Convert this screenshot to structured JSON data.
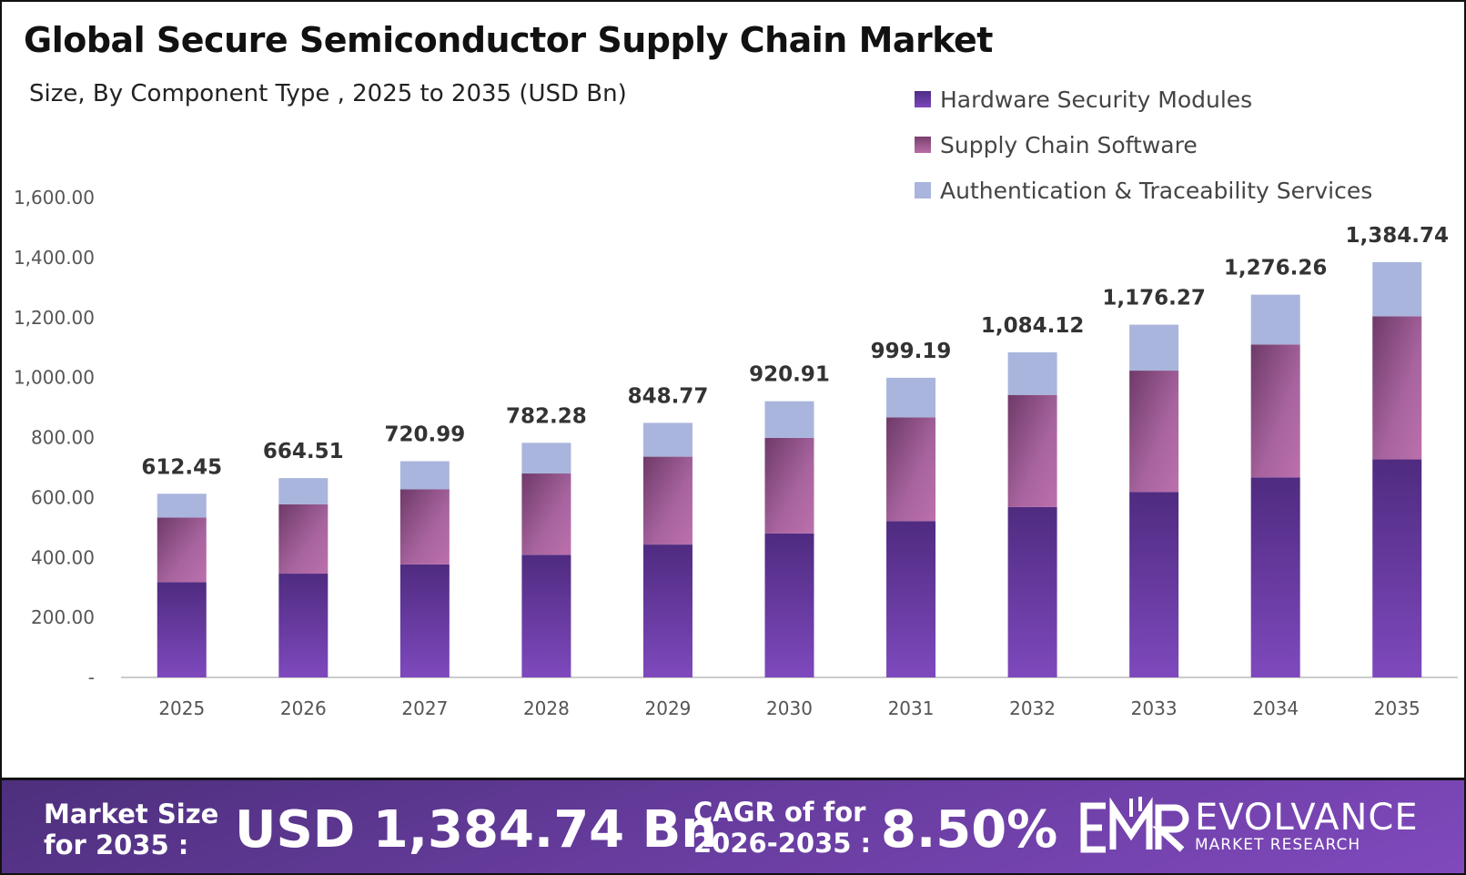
{
  "title": "Global Secure Semiconductor Supply Chain Market",
  "subtitle": "Size, By Component  Type , 2025 to 2035 (USD Bn)",
  "chart_data": {
    "type": "bar",
    "stacked": true,
    "categories": [
      "2025",
      "2026",
      "2027",
      "2028",
      "2029",
      "2030",
      "2031",
      "2032",
      "2033",
      "2034",
      "2035"
    ],
    "series": [
      {
        "name": "Hardware Security Modules",
        "color": "#6a3fa6",
        "values": [
          318,
          346,
          377,
          409,
          443,
          480,
          521,
          568,
          618,
          667,
          727
        ]
      },
      {
        "name": "Supply Chain Software",
        "color": "#a3619c",
        "values": [
          215,
          231,
          250,
          271,
          293,
          319,
          346,
          374,
          405,
          443,
          477
        ]
      },
      {
        "name": "Authentication & Traceability Services",
        "color": "#a9b5dc",
        "values": [
          79.45,
          87.51,
          93.99,
          102.28,
          112.77,
          121.91,
          132.19,
          142.12,
          153.27,
          166.26,
          180.74
        ]
      }
    ],
    "totals": [
      "612.45",
      "664.51",
      "720.99",
      "782.28",
      "848.77",
      "920.91",
      "999.19",
      "1,084.12",
      "1,176.27",
      "1,276.26",
      "1,384.74"
    ],
    "totals_numeric": [
      612.45,
      664.51,
      720.99,
      782.28,
      848.77,
      920.91,
      999.19,
      1084.12,
      1176.27,
      1276.26,
      1384.74
    ],
    "yticks": [
      "-",
      "200.00",
      "400.00",
      "600.00",
      "800.00",
      "1,000.00",
      "1,200.00",
      "1,400.00",
      "1,600.00"
    ],
    "ylim": [
      0,
      1600
    ],
    "grid": false,
    "legend": "top-right"
  },
  "banner": {
    "market_size_label_1": "Market Size",
    "market_size_label_2": "for 2035 :",
    "market_size_value": "USD 1,384.74 Bn",
    "cagr_label_1": "CAGR of for",
    "cagr_label_2": "2026-2035 :",
    "cagr_value": "8.50%",
    "logo_name": "EVOLVANCE",
    "logo_sub": "MARKET RESEARCH"
  }
}
